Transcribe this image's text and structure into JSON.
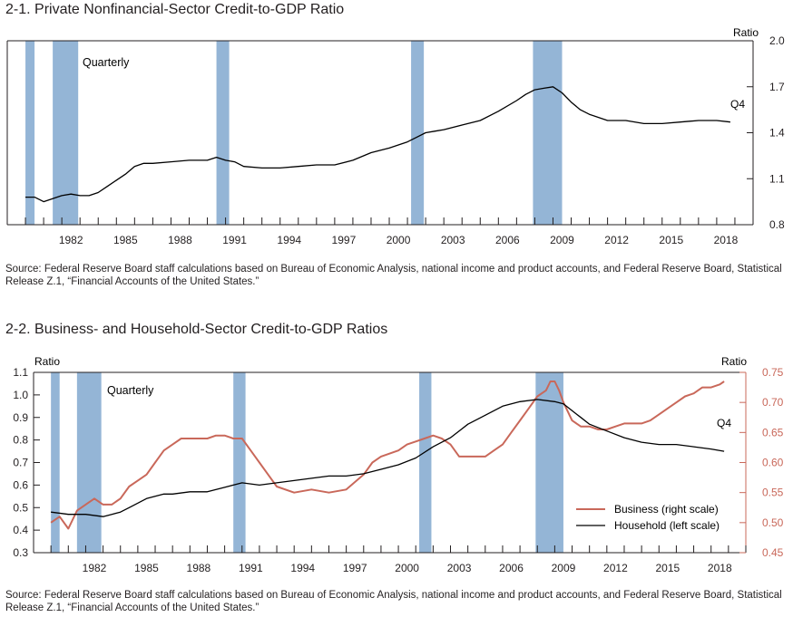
{
  "chart_data": [
    {
      "type": "line",
      "title": "2-1. Private Nonfinancial-Sector Credit-to-GDP Ratio",
      "source": "Source: Federal Reserve Board staff calculations based on Bureau of Economic Analysis, national income and product accounts, and Federal Reserve Board, Statistical Release Z.1, “Financial Accounts of the United States.”",
      "frequency_label": "Quarterly",
      "end_label": "Q4",
      "right_axis_label": "Ratio",
      "xlim": [
        1979,
        2020
      ],
      "ylim": [
        0.8,
        2.0
      ],
      "y_ticks": [
        0.8,
        1.1,
        1.4,
        1.7,
        2.0
      ],
      "y_tick_labels": [
        "0.8",
        "1.1",
        "1.4",
        "1.7",
        "2.0"
      ],
      "x_tick_labels": [
        "1982",
        "1985",
        "1988",
        "1991",
        "1994",
        "1997",
        "2000",
        "2003",
        "2006",
        "2009",
        "2012",
        "2015",
        "2018"
      ],
      "recessions": [
        [
          1980.0,
          1980.5
        ],
        [
          1981.5,
          1982.9
        ],
        [
          1990.5,
          1991.2
        ],
        [
          2001.2,
          2001.9
        ],
        [
          2007.9,
          2009.5
        ]
      ],
      "recession_color": "#94b5d6",
      "series": [
        {
          "name": "Private nonfinancial credit",
          "color": "#000000",
          "x": [
            1980.0,
            1980.5,
            1981.0,
            1981.5,
            1982.0,
            1982.5,
            1983.0,
            1983.5,
            1984.0,
            1984.5,
            1985.0,
            1985.5,
            1986.0,
            1986.5,
            1987.0,
            1988.0,
            1989.0,
            1990.0,
            1990.5,
            1991.0,
            1991.5,
            1992.0,
            1993.0,
            1994.0,
            1995.0,
            1996.0,
            1997.0,
            1998.0,
            1999.0,
            2000.0,
            2001.0,
            2001.5,
            2002.0,
            2002.5,
            2003.0,
            2004.0,
            2005.0,
            2006.0,
            2007.0,
            2007.5,
            2008.0,
            2008.5,
            2009.0,
            2009.5,
            2010.0,
            2010.5,
            2011.0,
            2012.0,
            2013.0,
            2014.0,
            2015.0,
            2016.0,
            2017.0,
            2018.0,
            2018.75
          ],
          "values": [
            0.98,
            0.98,
            0.95,
            0.97,
            0.99,
            1.0,
            0.99,
            0.99,
            1.01,
            1.05,
            1.09,
            1.13,
            1.18,
            1.2,
            1.2,
            1.21,
            1.22,
            1.22,
            1.24,
            1.22,
            1.21,
            1.18,
            1.17,
            1.17,
            1.18,
            1.19,
            1.19,
            1.22,
            1.27,
            1.3,
            1.34,
            1.37,
            1.4,
            1.41,
            1.42,
            1.45,
            1.48,
            1.54,
            1.61,
            1.65,
            1.68,
            1.69,
            1.7,
            1.66,
            1.6,
            1.55,
            1.52,
            1.48,
            1.48,
            1.46,
            1.46,
            1.47,
            1.48,
            1.48,
            1.47
          ]
        }
      ]
    },
    {
      "type": "line",
      "title": "2-2. Business- and Household-Sector Credit-to-GDP Ratios",
      "source": "Source: Federal Reserve Board staff calculations based on Bureau of Economic Analysis, national income and product accounts, and Federal Reserve Board, Statistical Release Z.1, “Financial Accounts of the United States.”",
      "frequency_label": "Quarterly",
      "end_label": "Q4",
      "left_axis_label": "Ratio",
      "right_axis_label": "Ratio",
      "xlim": [
        1979,
        2020
      ],
      "ylim_left": [
        0.3,
        1.1
      ],
      "ylim_right": [
        0.45,
        0.75
      ],
      "y_left_ticks": [
        0.3,
        0.4,
        0.5,
        0.6,
        0.7,
        0.8,
        0.9,
        1.0,
        1.1
      ],
      "y_left_tick_labels": [
        "0.3",
        "0.4",
        "0.5",
        "0.6",
        "0.7",
        "0.8",
        "0.9",
        "1.0",
        "1.1"
      ],
      "y_right_ticks": [
        0.45,
        0.5,
        0.55,
        0.6,
        0.65,
        0.7,
        0.75
      ],
      "y_right_tick_labels": [
        "0.45",
        "0.50",
        "0.55",
        "0.60",
        "0.65",
        "0.70",
        "0.75"
      ],
      "x_tick_labels": [
        "1982",
        "1985",
        "1988",
        "1991",
        "1994",
        "1997",
        "2000",
        "2003",
        "2006",
        "2009",
        "2012",
        "2015",
        "2018"
      ],
      "recessions": [
        [
          1980.0,
          1980.5
        ],
        [
          1981.5,
          1982.9
        ],
        [
          1990.5,
          1991.2
        ],
        [
          2001.2,
          2001.9
        ],
        [
          2007.9,
          2009.5
        ]
      ],
      "recession_color": "#94b5d6",
      "legend": {
        "placement": "bottom-right"
      },
      "series": [
        {
          "name": "Business (right scale)",
          "axis": "right",
          "color": "#c9685a",
          "x": [
            1980.0,
            1980.5,
            1981.0,
            1981.5,
            1982.0,
            1982.5,
            1983.0,
            1983.5,
            1984.0,
            1984.5,
            1985.0,
            1985.5,
            1986.0,
            1986.5,
            1987.0,
            1987.5,
            1988.0,
            1988.5,
            1989.0,
            1989.5,
            1990.0,
            1990.5,
            1991.0,
            1991.5,
            1992.0,
            1992.5,
            1993.0,
            1994.0,
            1995.0,
            1996.0,
            1997.0,
            1998.0,
            1998.5,
            1999.0,
            2000.0,
            2000.5,
            2001.0,
            2001.5,
            2002.0,
            2002.5,
            2003.0,
            2003.5,
            2004.0,
            2005.0,
            2005.5,
            2006.0,
            2006.5,
            2007.0,
            2007.5,
            2008.0,
            2008.5,
            2008.75,
            2009.0,
            2009.25,
            2009.5,
            2010.0,
            2010.5,
            2011.0,
            2011.5,
            2012.0,
            2012.5,
            2013.0,
            2013.5,
            2014.0,
            2014.5,
            2015.0,
            2015.5,
            2016.0,
            2016.5,
            2017.0,
            2017.5,
            2018.0,
            2018.5,
            2018.75
          ],
          "values": [
            0.5,
            0.51,
            0.49,
            0.52,
            0.53,
            0.54,
            0.53,
            0.53,
            0.54,
            0.56,
            0.57,
            0.58,
            0.6,
            0.62,
            0.63,
            0.64,
            0.64,
            0.64,
            0.64,
            0.645,
            0.645,
            0.64,
            0.64,
            0.62,
            0.6,
            0.58,
            0.56,
            0.55,
            0.555,
            0.55,
            0.555,
            0.58,
            0.6,
            0.61,
            0.62,
            0.63,
            0.635,
            0.64,
            0.645,
            0.64,
            0.63,
            0.61,
            0.61,
            0.61,
            0.62,
            0.63,
            0.65,
            0.67,
            0.69,
            0.71,
            0.72,
            0.735,
            0.735,
            0.72,
            0.7,
            0.67,
            0.66,
            0.66,
            0.655,
            0.655,
            0.66,
            0.665,
            0.665,
            0.665,
            0.67,
            0.68,
            0.69,
            0.7,
            0.71,
            0.715,
            0.725,
            0.725,
            0.73,
            0.735
          ]
        },
        {
          "name": "Household (left scale)",
          "axis": "left",
          "color": "#000000",
          "x": [
            1980.0,
            1981.0,
            1982.0,
            1983.0,
            1983.5,
            1984.0,
            1984.5,
            1985.0,
            1985.5,
            1986.0,
            1986.5,
            1987.0,
            1988.0,
            1989.0,
            1990.0,
            1991.0,
            1992.0,
            1993.0,
            1994.0,
            1995.0,
            1996.0,
            1997.0,
            1998.0,
            1999.0,
            2000.0,
            2001.0,
            2002.0,
            2003.0,
            2004.0,
            2005.0,
            2006.0,
            2007.0,
            2008.0,
            2009.0,
            2009.5,
            2010.0,
            2010.5,
            2011.0,
            2012.0,
            2013.0,
            2014.0,
            2015.0,
            2016.0,
            2017.0,
            2018.0,
            2018.75
          ],
          "values": [
            0.48,
            0.47,
            0.47,
            0.46,
            0.47,
            0.48,
            0.5,
            0.52,
            0.54,
            0.55,
            0.56,
            0.56,
            0.57,
            0.57,
            0.59,
            0.61,
            0.6,
            0.61,
            0.62,
            0.63,
            0.64,
            0.64,
            0.65,
            0.67,
            0.69,
            0.72,
            0.77,
            0.81,
            0.87,
            0.91,
            0.95,
            0.97,
            0.98,
            0.97,
            0.96,
            0.93,
            0.9,
            0.87,
            0.84,
            0.81,
            0.79,
            0.78,
            0.78,
            0.77,
            0.76,
            0.75
          ]
        }
      ]
    }
  ]
}
